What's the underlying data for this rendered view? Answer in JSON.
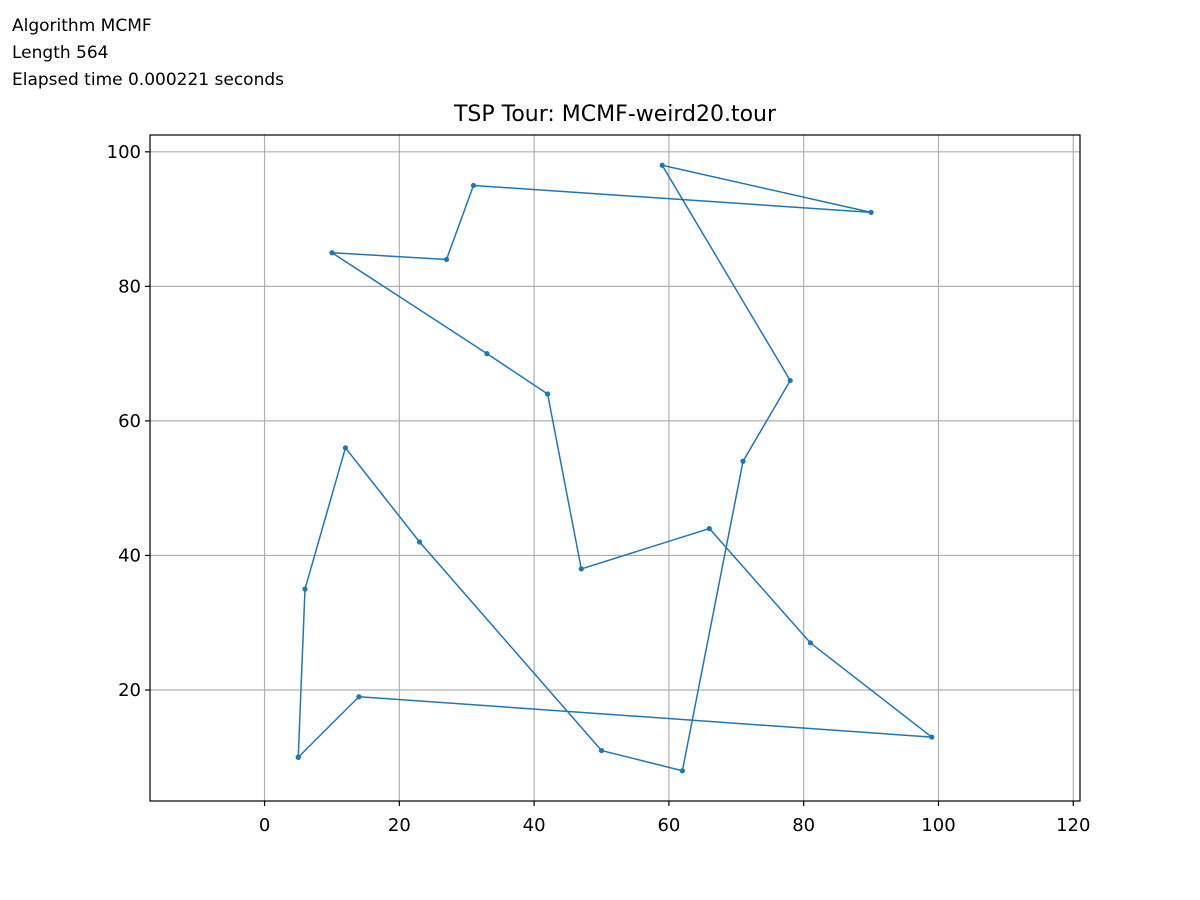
{
  "info": {
    "algorithm": "Algorithm MCMF",
    "length": "Length 564",
    "elapsed": "Elapsed time 0.000221 seconds"
  },
  "chart_data": {
    "type": "line",
    "title": "TSP Tour: MCMF-weird20.tour",
    "xlabel": "",
    "ylabel": "",
    "xlim": [
      -17,
      121
    ],
    "ylim": [
      3.5,
      102.5
    ],
    "xticks": [
      0,
      20,
      40,
      60,
      80,
      100,
      120
    ],
    "yticks": [
      20,
      40,
      60,
      80,
      100
    ],
    "grid": true,
    "line_color": "#1f77b4",
    "series": [
      {
        "points": [
          [
            5,
            10
          ],
          [
            14,
            19
          ],
          [
            99,
            13
          ],
          [
            81,
            27
          ],
          [
            66,
            44
          ],
          [
            47,
            38
          ],
          [
            42,
            64
          ],
          [
            33,
            70
          ],
          [
            10,
            85
          ],
          [
            27,
            84
          ],
          [
            31,
            95
          ],
          [
            90,
            91
          ],
          [
            59,
            98
          ],
          [
            78,
            66
          ],
          [
            71,
            54
          ],
          [
            62,
            8
          ],
          [
            50,
            11
          ],
          [
            23,
            42
          ],
          [
            12,
            56
          ],
          [
            6,
            35
          ],
          [
            5,
            10
          ]
        ]
      }
    ]
  }
}
